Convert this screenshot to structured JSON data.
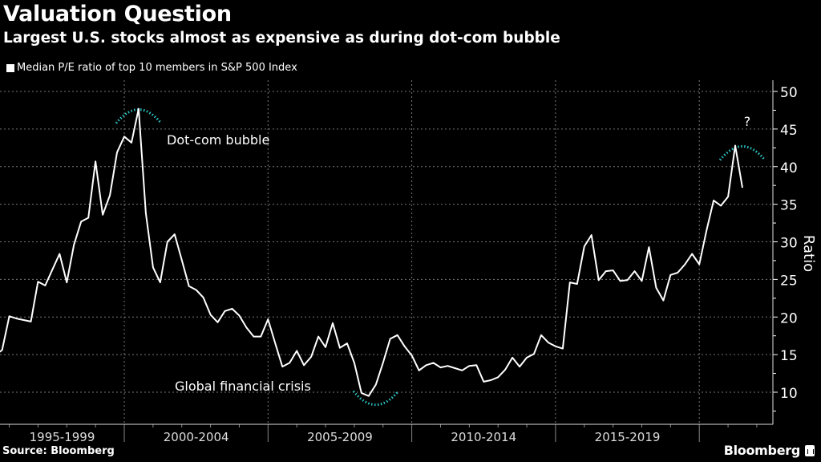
{
  "header": {
    "title": "Valuation Question",
    "subtitle": "Largest U.S. stocks almost as expensive as during dot-com bubble",
    "legend_label": "Median P/E ratio of top 10 members in S&P 500 Index"
  },
  "footer": {
    "source": "Source: Bloomberg",
    "brand": "Bloomberg"
  },
  "colors": {
    "background": "#000000",
    "line": "#ffffff",
    "annotation_arc": "#2ec4c4",
    "grid": "#777777"
  },
  "chart_data": {
    "type": "line",
    "title": "Valuation Question",
    "subtitle": "Largest U.S. stocks almost as expensive as during dot-com bubble",
    "xlabel": "",
    "ylabel": "Ratio",
    "ylim": [
      5,
      51
    ],
    "yticks": [
      10,
      15,
      20,
      25,
      30,
      35,
      40,
      45,
      50
    ],
    "y_axis_side": "right",
    "grid": true,
    "legend_position": "top-left",
    "x_start": 1995.5,
    "x_step": 0.25,
    "x_period_boundaries": [
      2000,
      2005,
      2010,
      2015,
      2020
    ],
    "x_category_labels": [
      {
        "label": "1995-1999",
        "from": 1995,
        "to": 2000
      },
      {
        "label": "2000-2004",
        "from": 2000,
        "to": 2005
      },
      {
        "label": "2005-2009",
        "from": 2005,
        "to": 2010
      },
      {
        "label": "2010-2014",
        "from": 2010,
        "to": 2015
      },
      {
        "label": "2015-2019",
        "from": 2015,
        "to": 2020
      }
    ],
    "series": [
      {
        "name": "Median P/E ratio of top 10 members in S&P 500 Index",
        "values": [
          14.9,
          15.6,
          20.1,
          19.8,
          19.6,
          19.4,
          24.7,
          24.2,
          26.3,
          28.4,
          24.6,
          29.6,
          32.7,
          33.2,
          40.7,
          33.6,
          36.2,
          41.9,
          44.0,
          43.2,
          47.7,
          33.8,
          26.6,
          24.6,
          30.0,
          31.0,
          27.6,
          24.1,
          23.6,
          22.6,
          20.3,
          19.3,
          20.8,
          21.1,
          20.2,
          18.6,
          17.4,
          17.4,
          19.7,
          16.5,
          13.4,
          13.9,
          15.5,
          13.6,
          14.7,
          17.4,
          16.0,
          19.2,
          15.9,
          16.5,
          13.9,
          9.9,
          9.5,
          11.0,
          13.9,
          17.1,
          17.6,
          16.1,
          14.9,
          12.9,
          13.6,
          13.9,
          13.3,
          13.5,
          13.2,
          12.9,
          13.5,
          13.6,
          11.4,
          11.6,
          12.0,
          13.0,
          14.6,
          13.4,
          14.6,
          15.1,
          17.6,
          16.6,
          16.1,
          15.8,
          24.6,
          24.4,
          29.4,
          30.9,
          24.9,
          26.1,
          26.2,
          24.8,
          24.9,
          26.1,
          24.8,
          29.3,
          23.9,
          22.2,
          25.6,
          25.9,
          27.0,
          28.4,
          27.0,
          31.5,
          35.5,
          34.8,
          36.0,
          42.8,
          37.2
        ]
      }
    ],
    "annotations": [
      {
        "text": "Dot-com bubble",
        "arc": "cap",
        "at_x": 2000.5,
        "at_y": 47.7
      },
      {
        "text": "Global financial crisis",
        "arc": "cup",
        "at_x": 2008.75,
        "at_y": 9.5
      },
      {
        "text": "?",
        "arc": "cap",
        "at_x": 2021.5,
        "at_y": 42.8
      }
    ]
  }
}
